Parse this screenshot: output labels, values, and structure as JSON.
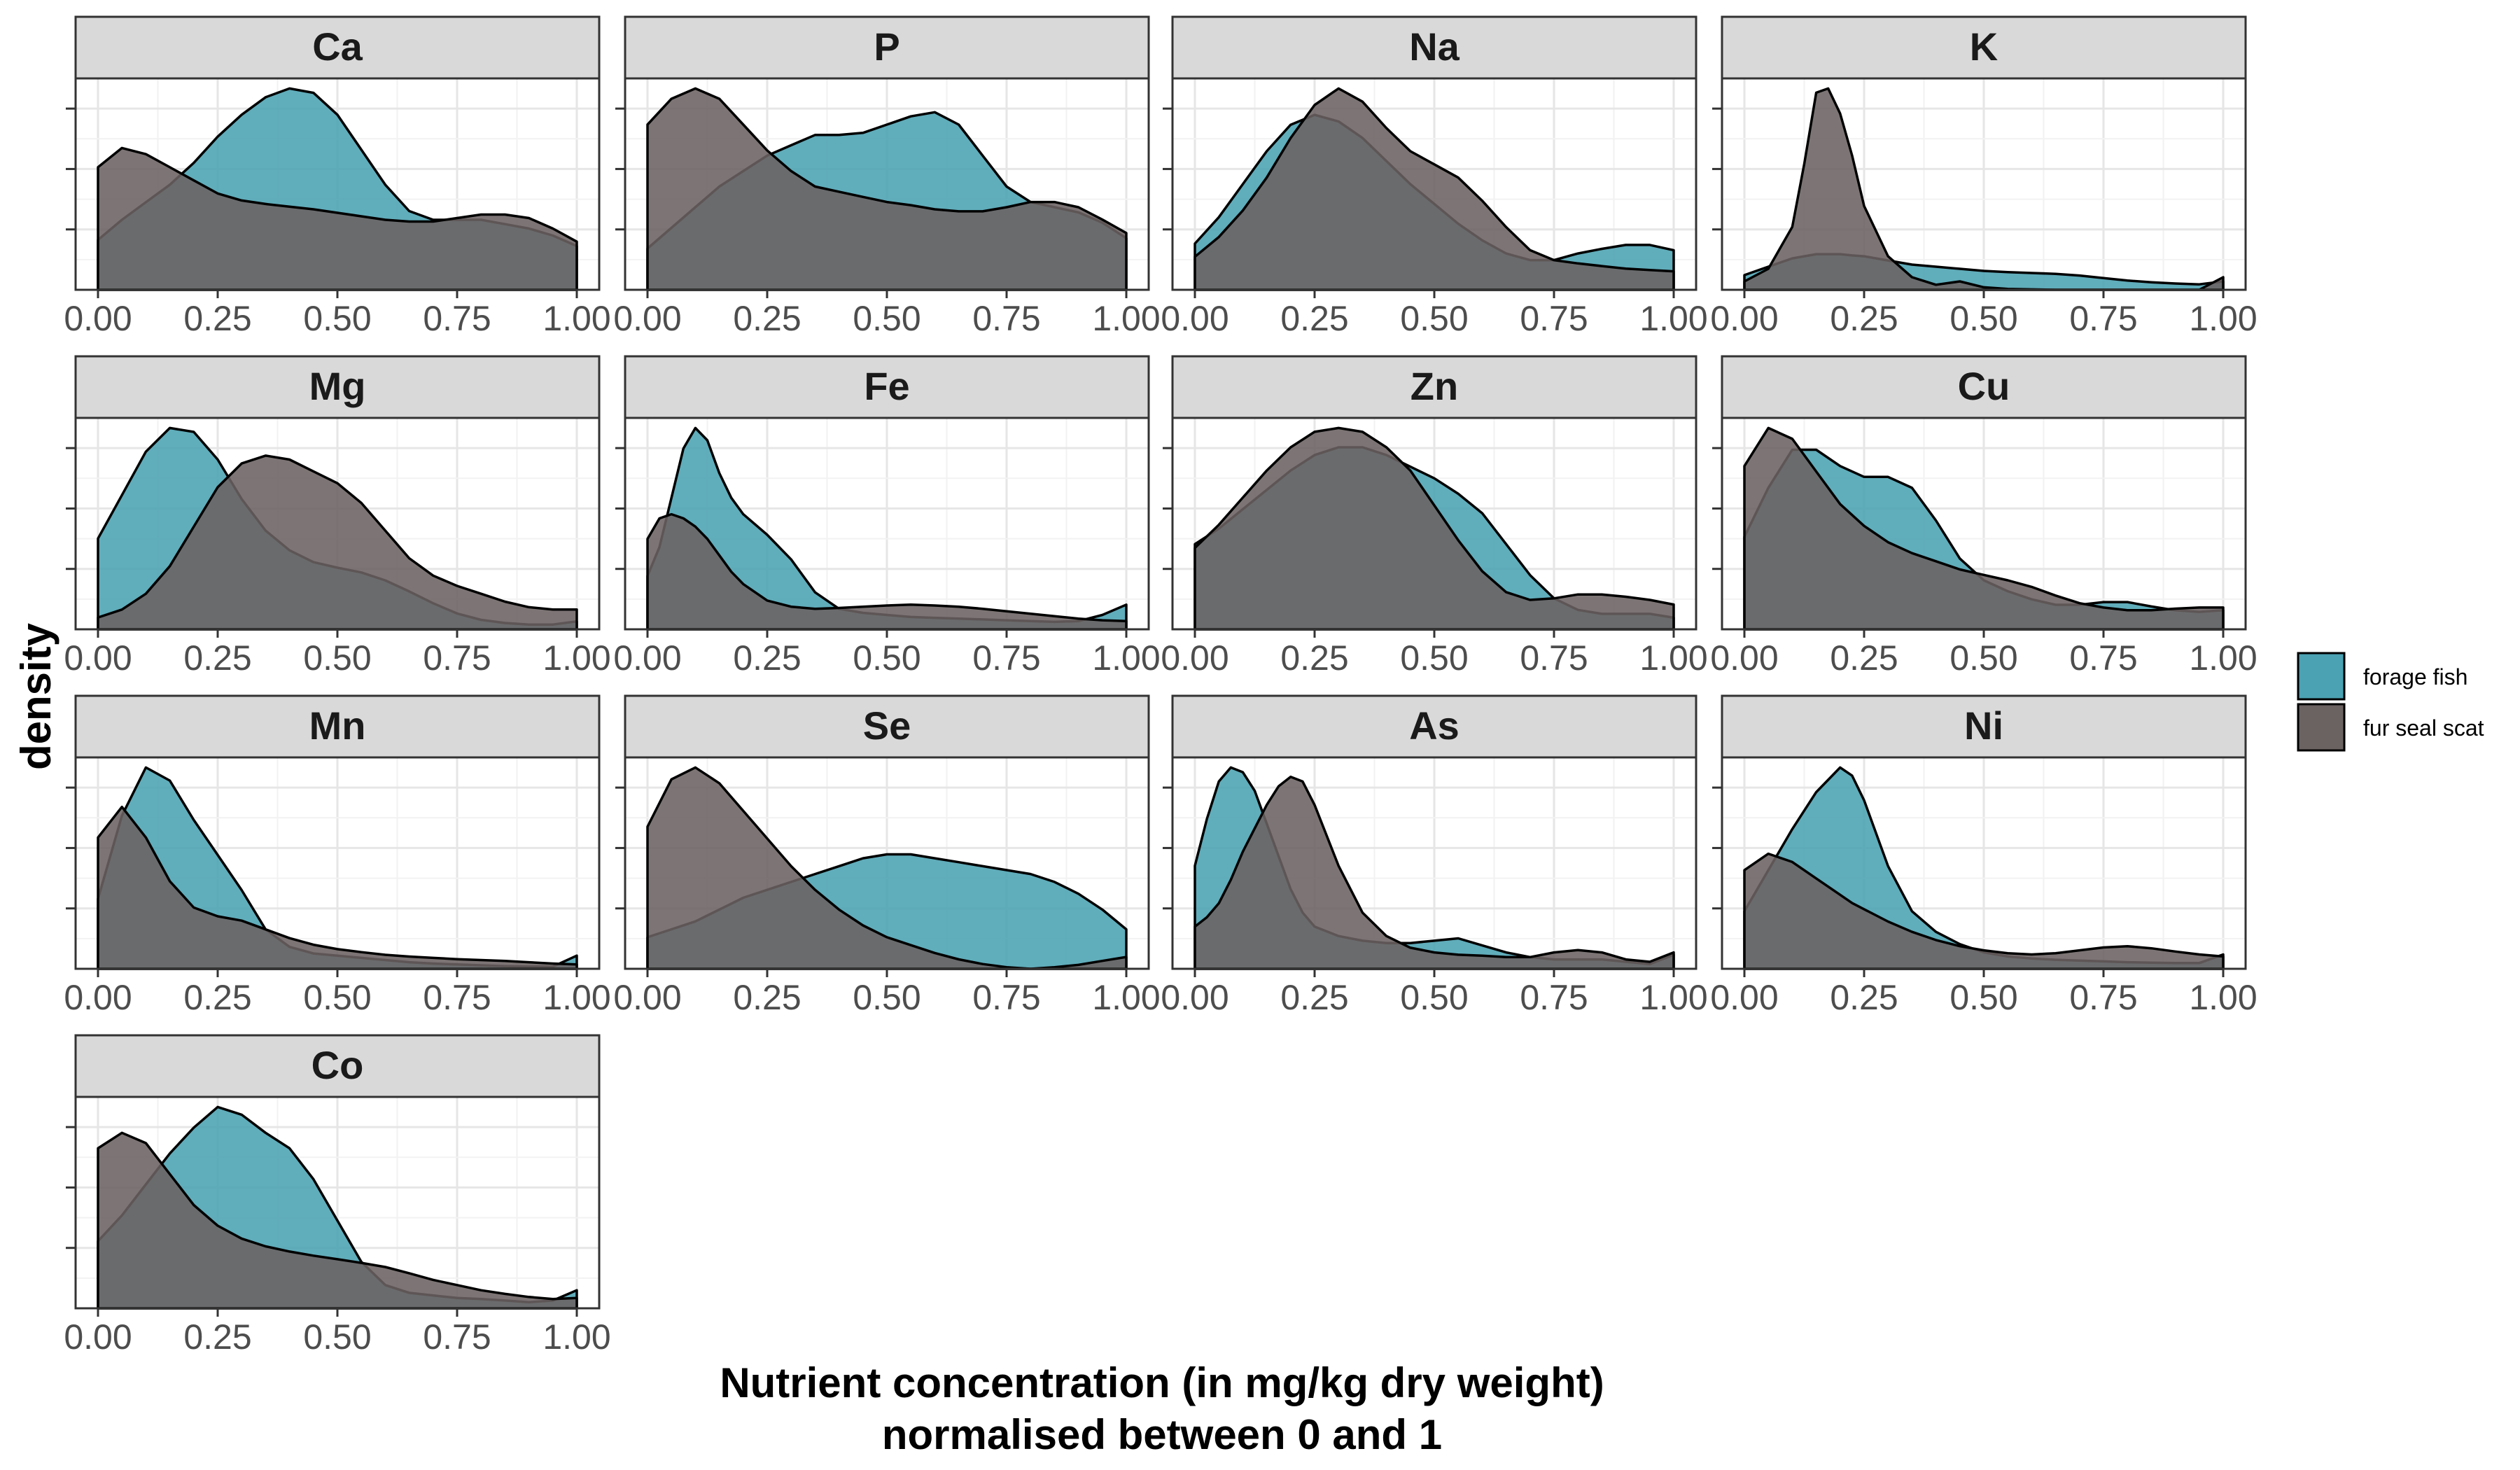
{
  "chart_data": {
    "type": "area",
    "subtype": "faceted density plot",
    "xlabel": [
      "Nutrient concentration (in mg/kg dry weight)",
      "normalised between 0 and 1"
    ],
    "ylabel": "density",
    "xlim": [
      0,
      1
    ],
    "x_ticks": [
      "0.00",
      "0.25",
      "0.50",
      "0.75",
      "1.00"
    ],
    "y_tick_labels_shown": false,
    "grid": true,
    "legend": "right",
    "series": [
      {
        "name": "forage fish",
        "color": "#4aa2b2"
      },
      {
        "name": "fur seal scat",
        "color": "#6b6262"
      }
    ],
    "panels": [
      {
        "name": "Ca",
        "x": [
          0,
          0.05,
          0.1,
          0.15,
          0.2,
          0.25,
          0.3,
          0.35,
          0.4,
          0.45,
          0.5,
          0.55,
          0.6,
          0.65,
          0.7,
          0.75,
          0.8,
          0.85,
          0.9,
          0.95,
          1.0
        ],
        "forage fish": [
          0.57,
          0.8,
          1.0,
          1.2,
          1.45,
          1.75,
          2.0,
          2.2,
          2.3,
          2.25,
          2.0,
          1.6,
          1.2,
          0.9,
          0.8,
          0.8,
          0.8,
          0.75,
          0.7,
          0.62,
          0.5
        ],
        "fur seal scat": [
          1.4,
          1.62,
          1.55,
          1.4,
          1.25,
          1.1,
          1.02,
          0.98,
          0.95,
          0.92,
          0.88,
          0.84,
          0.8,
          0.78,
          0.78,
          0.82,
          0.86,
          0.86,
          0.82,
          0.7,
          0.55
        ]
      },
      {
        "name": "P",
        "x": [
          0,
          0.05,
          0.1,
          0.15,
          0.2,
          0.25,
          0.3,
          0.35,
          0.4,
          0.45,
          0.5,
          0.55,
          0.6,
          0.65,
          0.7,
          0.75,
          0.8,
          0.85,
          0.9,
          0.95,
          1.0
        ],
        "forage fish": [
          0.4,
          0.6,
          0.8,
          1.0,
          1.15,
          1.3,
          1.4,
          1.5,
          1.5,
          1.52,
          1.6,
          1.68,
          1.72,
          1.6,
          1.3,
          1.0,
          0.85,
          0.8,
          0.75,
          0.65,
          0.5
        ],
        "fur seal scat": [
          1.6,
          1.85,
          1.95,
          1.85,
          1.6,
          1.35,
          1.15,
          1.0,
          0.95,
          0.9,
          0.85,
          0.82,
          0.78,
          0.76,
          0.76,
          0.8,
          0.85,
          0.85,
          0.8,
          0.68,
          0.55
        ]
      },
      {
        "name": "Na",
        "x": [
          0,
          0.05,
          0.1,
          0.15,
          0.2,
          0.25,
          0.3,
          0.35,
          0.4,
          0.45,
          0.5,
          0.55,
          0.6,
          0.65,
          0.7,
          0.75,
          0.8,
          0.85,
          0.9,
          0.95,
          1.0
        ],
        "forage fish": [
          0.7,
          1.1,
          1.6,
          2.1,
          2.5,
          2.65,
          2.55,
          2.3,
          1.95,
          1.6,
          1.3,
          1.0,
          0.75,
          0.55,
          0.45,
          0.45,
          0.55,
          0.62,
          0.68,
          0.68,
          0.6
        ],
        "fur seal scat": [
          0.5,
          0.8,
          1.2,
          1.7,
          2.3,
          2.8,
          3.05,
          2.85,
          2.45,
          2.1,
          1.9,
          1.7,
          1.35,
          0.95,
          0.6,
          0.45,
          0.4,
          0.36,
          0.32,
          0.3,
          0.28
        ]
      },
      {
        "name": "K",
        "x": [
          0,
          0.05,
          0.1,
          0.125,
          0.15,
          0.175,
          0.2,
          0.225,
          0.25,
          0.3,
          0.35,
          0.4,
          0.45,
          0.5,
          0.55,
          0.6,
          0.65,
          0.7,
          0.75,
          0.8,
          0.85,
          0.9,
          0.95,
          1.0
        ],
        "forage fish": [
          0.35,
          0.55,
          0.75,
          0.8,
          0.85,
          0.85,
          0.85,
          0.82,
          0.8,
          0.7,
          0.6,
          0.55,
          0.5,
          0.45,
          0.42,
          0.4,
          0.38,
          0.34,
          0.28,
          0.22,
          0.18,
          0.15,
          0.13,
          0.2
        ],
        "fur seal scat": [
          0.2,
          0.5,
          1.5,
          3.0,
          4.7,
          4.8,
          4.2,
          3.2,
          2.0,
          0.8,
          0.3,
          0.12,
          0.2,
          0.06,
          0.02,
          0.01,
          0.0,
          0.0,
          0.0,
          0.0,
          0.0,
          0.0,
          0.0,
          0.3
        ]
      },
      {
        "name": "Mg",
        "x": [
          0,
          0.05,
          0.1,
          0.15,
          0.2,
          0.25,
          0.3,
          0.35,
          0.4,
          0.45,
          0.5,
          0.55,
          0.6,
          0.65,
          0.7,
          0.75,
          0.8,
          0.85,
          0.9,
          0.95,
          1.0
        ],
        "forage fish": [
          1.15,
          1.7,
          2.25,
          2.55,
          2.5,
          2.15,
          1.65,
          1.25,
          1.0,
          0.85,
          0.78,
          0.72,
          0.62,
          0.48,
          0.33,
          0.2,
          0.12,
          0.08,
          0.06,
          0.06,
          0.1
        ],
        "fur seal scat": [
          0.15,
          0.25,
          0.45,
          0.8,
          1.3,
          1.8,
          2.1,
          2.2,
          2.15,
          2.0,
          1.85,
          1.6,
          1.25,
          0.9,
          0.68,
          0.55,
          0.45,
          0.35,
          0.28,
          0.25,
          0.25
        ]
      },
      {
        "name": "Fe",
        "x": [
          0,
          0.025,
          0.05,
          0.075,
          0.1,
          0.125,
          0.15,
          0.175,
          0.2,
          0.25,
          0.3,
          0.35,
          0.4,
          0.45,
          0.5,
          0.55,
          0.6,
          0.65,
          0.7,
          0.75,
          0.8,
          0.85,
          0.9,
          0.95,
          1.0
        ],
        "forage fish": [
          1.3,
          2.0,
          3.2,
          4.4,
          4.9,
          4.6,
          3.8,
          3.2,
          2.8,
          2.3,
          1.7,
          0.9,
          0.5,
          0.4,
          0.35,
          0.3,
          0.28,
          0.26,
          0.24,
          0.22,
          0.2,
          0.18,
          0.2,
          0.35,
          0.6
        ],
        "fur seal scat": [
          2.2,
          2.7,
          2.8,
          2.7,
          2.5,
          2.2,
          1.8,
          1.4,
          1.1,
          0.7,
          0.55,
          0.5,
          0.52,
          0.55,
          0.58,
          0.6,
          0.58,
          0.55,
          0.5,
          0.44,
          0.38,
          0.32,
          0.26,
          0.22,
          0.2
        ]
      },
      {
        "name": "Zn",
        "x": [
          0,
          0.05,
          0.1,
          0.15,
          0.2,
          0.25,
          0.3,
          0.35,
          0.4,
          0.45,
          0.5,
          0.55,
          0.6,
          0.65,
          0.7,
          0.75,
          0.8,
          0.85,
          0.9,
          0.95,
          1.0
        ],
        "forage fish": [
          1.1,
          1.3,
          1.55,
          1.8,
          2.05,
          2.25,
          2.35,
          2.35,
          2.25,
          2.1,
          1.95,
          1.75,
          1.5,
          1.1,
          0.7,
          0.4,
          0.25,
          0.2,
          0.2,
          0.2,
          0.15
        ],
        "fur seal scat": [
          1.05,
          1.35,
          1.7,
          2.05,
          2.35,
          2.55,
          2.6,
          2.55,
          2.35,
          2.05,
          1.6,
          1.15,
          0.75,
          0.48,
          0.38,
          0.4,
          0.45,
          0.45,
          0.42,
          0.38,
          0.32
        ]
      },
      {
        "name": "Cu",
        "x": [
          0,
          0.05,
          0.1,
          0.15,
          0.2,
          0.25,
          0.3,
          0.35,
          0.4,
          0.45,
          0.5,
          0.55,
          0.6,
          0.65,
          0.7,
          0.75,
          0.8,
          0.85,
          0.9,
          0.95,
          1.0
        ],
        "forage fish": [
          1.7,
          2.6,
          3.3,
          3.3,
          3.0,
          2.8,
          2.8,
          2.6,
          2.0,
          1.3,
          0.9,
          0.7,
          0.55,
          0.45,
          0.45,
          0.5,
          0.5,
          0.42,
          0.35,
          0.32,
          0.35
        ],
        "fur seal scat": [
          3.0,
          3.7,
          3.5,
          2.9,
          2.3,
          1.9,
          1.6,
          1.4,
          1.25,
          1.1,
          1.0,
          0.9,
          0.78,
          0.62,
          0.48,
          0.4,
          0.35,
          0.35,
          0.38,
          0.4,
          0.4
        ]
      },
      {
        "name": "Mn",
        "x": [
          0,
          0.05,
          0.1,
          0.15,
          0.2,
          0.25,
          0.3,
          0.35,
          0.4,
          0.45,
          0.5,
          0.55,
          0.6,
          0.65,
          0.7,
          0.75,
          0.8,
          0.85,
          0.9,
          0.95,
          1.0
        ],
        "forage fish": [
          1.6,
          3.5,
          4.6,
          4.3,
          3.4,
          2.6,
          1.8,
          0.9,
          0.5,
          0.35,
          0.3,
          0.25,
          0.2,
          0.15,
          0.12,
          0.1,
          0.08,
          0.06,
          0.05,
          0.05,
          0.3
        ],
        "fur seal scat": [
          3.0,
          3.7,
          3.0,
          2.0,
          1.4,
          1.2,
          1.1,
          0.9,
          0.7,
          0.55,
          0.45,
          0.38,
          0.32,
          0.28,
          0.25,
          0.22,
          0.2,
          0.18,
          0.15,
          0.12,
          0.1
        ]
      },
      {
        "name": "Se",
        "x": [
          0,
          0.05,
          0.1,
          0.15,
          0.2,
          0.25,
          0.3,
          0.35,
          0.4,
          0.45,
          0.5,
          0.55,
          0.6,
          0.65,
          0.7,
          0.75,
          0.8,
          0.85,
          0.9,
          0.95,
          1.0
        ],
        "forage fish": [
          0.4,
          0.5,
          0.6,
          0.75,
          0.9,
          1.0,
          1.1,
          1.2,
          1.3,
          1.4,
          1.45,
          1.45,
          1.4,
          1.35,
          1.3,
          1.25,
          1.2,
          1.1,
          0.95,
          0.75,
          0.5
        ],
        "fur seal scat": [
          1.8,
          2.4,
          2.55,
          2.35,
          2.0,
          1.65,
          1.3,
          1.0,
          0.75,
          0.55,
          0.4,
          0.3,
          0.2,
          0.12,
          0.06,
          0.02,
          0.0,
          0.02,
          0.05,
          0.1,
          0.15
        ]
      },
      {
        "name": "As",
        "x": [
          0,
          0.025,
          0.05,
          0.075,
          0.1,
          0.125,
          0.15,
          0.175,
          0.2,
          0.225,
          0.25,
          0.3,
          0.35,
          0.4,
          0.45,
          0.5,
          0.55,
          0.6,
          0.65,
          0.7,
          0.75,
          0.8,
          0.85,
          0.9,
          0.95,
          1.0
        ],
        "forage fish": [
          2.2,
          3.2,
          4.0,
          4.3,
          4.2,
          3.8,
          3.1,
          2.4,
          1.7,
          1.2,
          0.9,
          0.7,
          0.6,
          0.55,
          0.55,
          0.6,
          0.65,
          0.5,
          0.35,
          0.25,
          0.2,
          0.2,
          0.2,
          0.15,
          0.1,
          0.3
        ],
        "fur seal scat": [
          0.9,
          1.1,
          1.4,
          1.9,
          2.5,
          3.0,
          3.5,
          3.9,
          4.1,
          4.0,
          3.5,
          2.2,
          1.2,
          0.7,
          0.45,
          0.35,
          0.3,
          0.28,
          0.25,
          0.25,
          0.35,
          0.4,
          0.35,
          0.2,
          0.15,
          0.35
        ]
      },
      {
        "name": "Ni",
        "x": [
          0,
          0.05,
          0.1,
          0.15,
          0.2,
          0.225,
          0.25,
          0.3,
          0.35,
          0.4,
          0.45,
          0.5,
          0.55,
          0.6,
          0.65,
          0.7,
          0.75,
          0.8,
          0.85,
          0.9,
          0.95,
          1.0
        ],
        "forage fish": [
          1.4,
          2.4,
          3.4,
          4.3,
          4.9,
          4.7,
          4.1,
          2.5,
          1.4,
          0.9,
          0.6,
          0.4,
          0.3,
          0.25,
          0.22,
          0.2,
          0.18,
          0.16,
          0.15,
          0.14,
          0.14,
          0.35
        ],
        "fur seal scat": [
          2.4,
          2.8,
          2.6,
          2.2,
          1.8,
          1.6,
          1.45,
          1.15,
          0.9,
          0.7,
          0.55,
          0.45,
          0.38,
          0.35,
          0.38,
          0.45,
          0.52,
          0.55,
          0.5,
          0.42,
          0.35,
          0.3
        ]
      },
      {
        "name": "Co",
        "x": [
          0,
          0.05,
          0.1,
          0.15,
          0.2,
          0.25,
          0.3,
          0.35,
          0.4,
          0.45,
          0.5,
          0.55,
          0.6,
          0.65,
          0.7,
          0.75,
          0.8,
          0.85,
          0.9,
          0.95,
          1.0
        ],
        "forage fish": [
          1.3,
          1.8,
          2.4,
          3.0,
          3.5,
          3.9,
          3.75,
          3.4,
          3.1,
          2.5,
          1.7,
          0.9,
          0.45,
          0.3,
          0.25,
          0.2,
          0.18,
          0.15,
          0.12,
          0.15,
          0.35
        ],
        "fur seal scat": [
          3.1,
          3.4,
          3.2,
          2.6,
          2.0,
          1.6,
          1.35,
          1.2,
          1.1,
          1.02,
          0.95,
          0.88,
          0.8,
          0.68,
          0.55,
          0.45,
          0.35,
          0.28,
          0.22,
          0.18,
          0.2
        ]
      }
    ]
  }
}
